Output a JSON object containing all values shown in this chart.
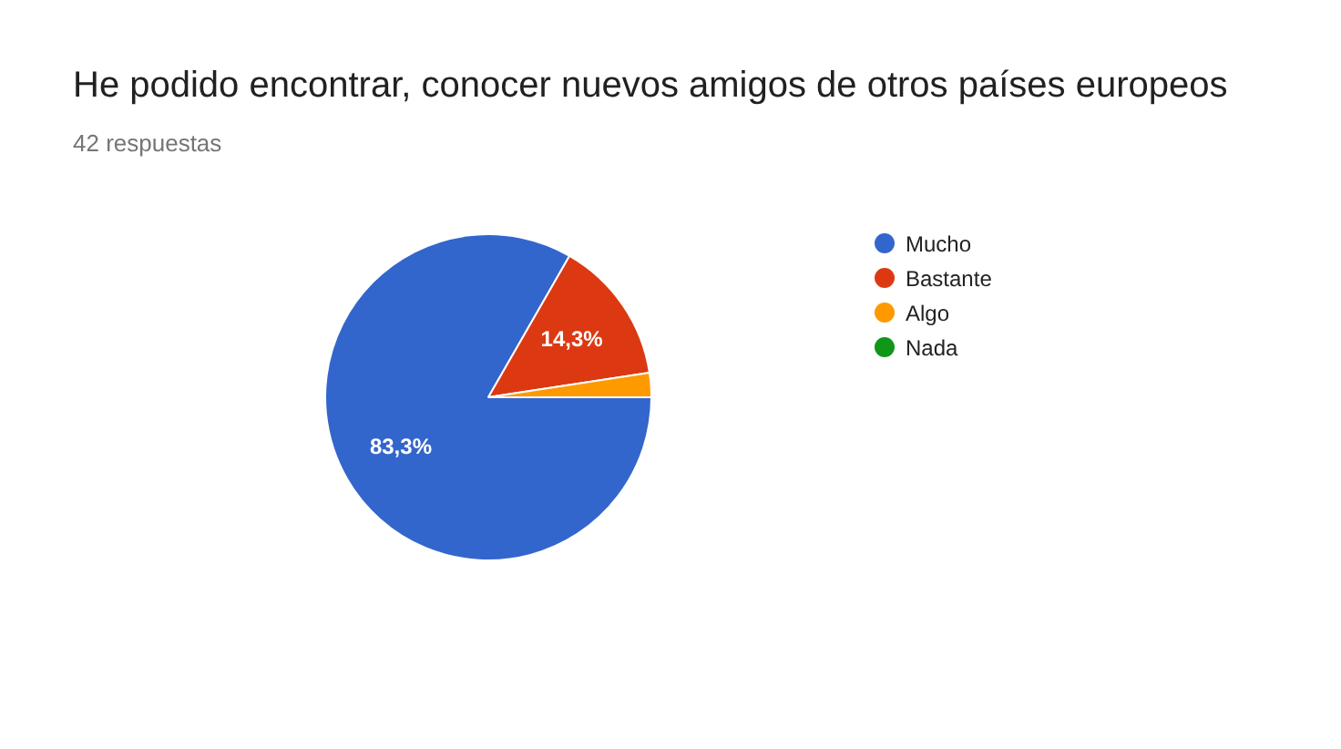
{
  "chart_data": {
    "type": "pie",
    "title": "He podido encontrar, conocer nuevos amigos de otros países europeos",
    "subtitle": "42 respuestas",
    "categories": [
      "Mucho",
      "Bastante",
      "Algo",
      "Nada"
    ],
    "values": [
      83.3,
      14.3,
      2.4,
      0
    ],
    "colors": [
      "#3366cc",
      "#dc3912",
      "#ff9900",
      "#109618"
    ],
    "value_labels": [
      "83,3%",
      "14,3%",
      null,
      null
    ],
    "legend": "right"
  }
}
